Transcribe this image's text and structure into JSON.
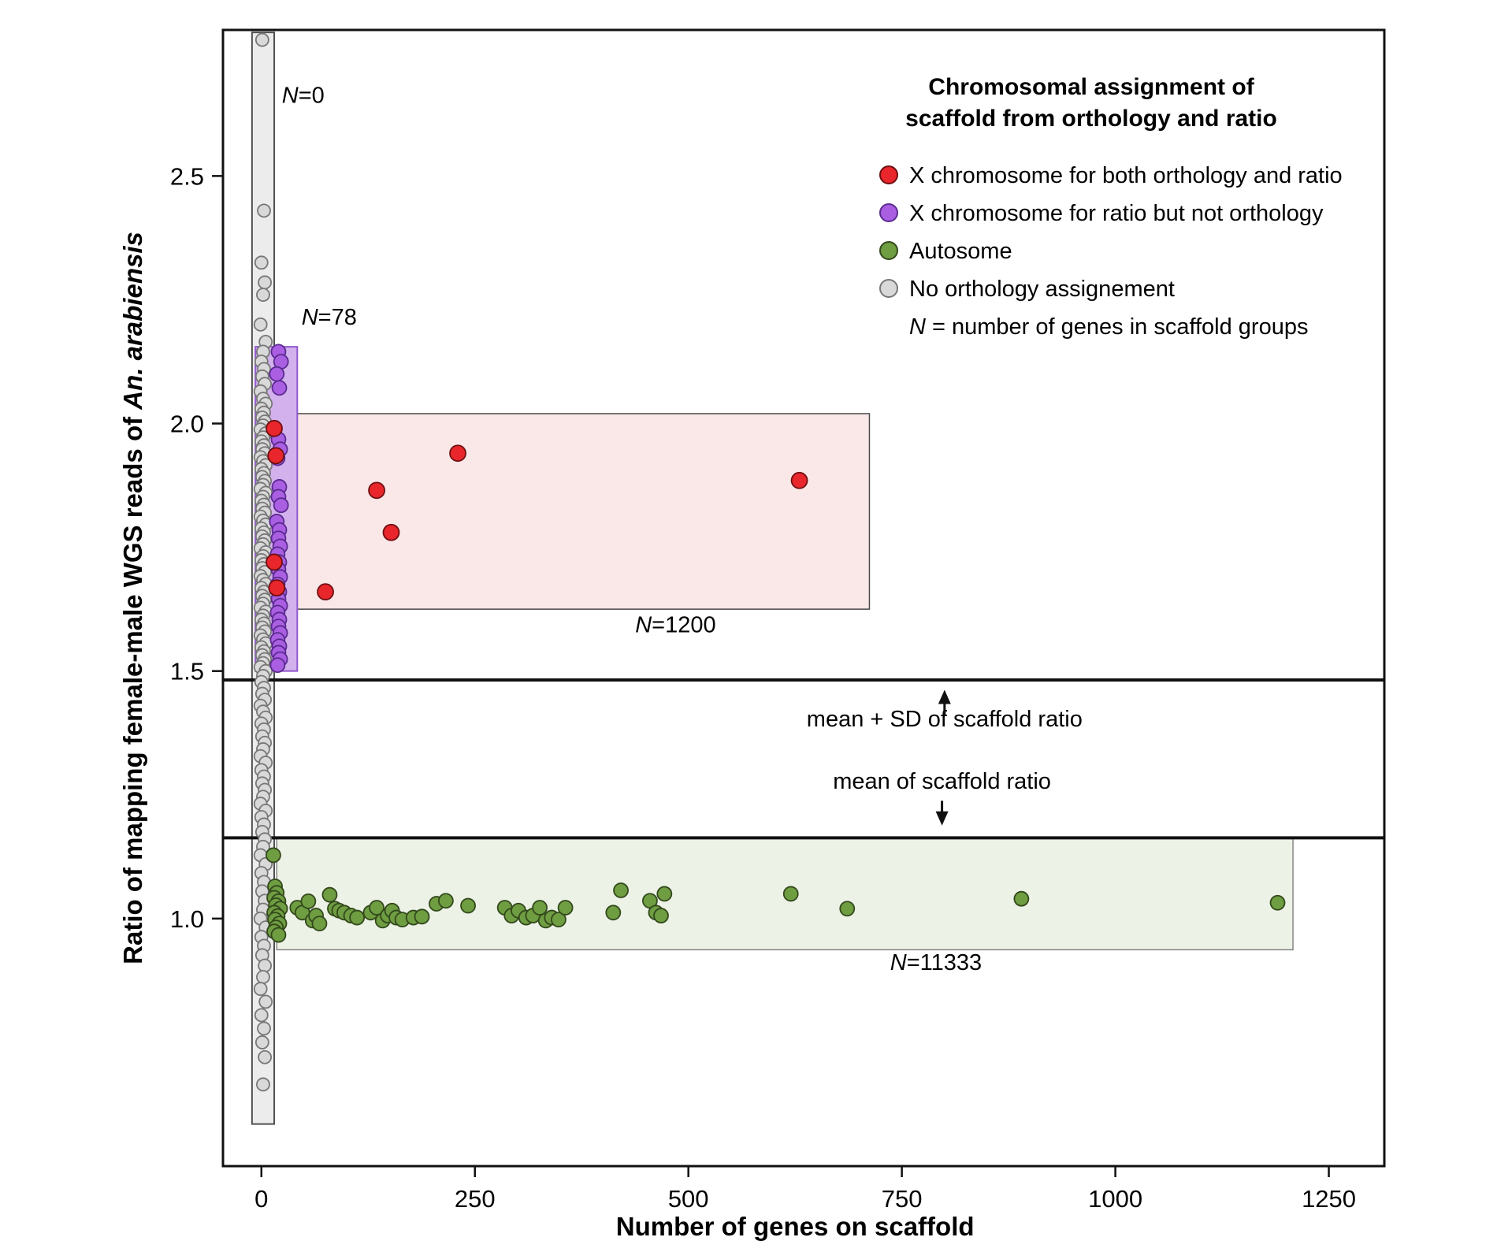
{
  "chart_data": {
    "type": "scatter",
    "xlabel": "Number of genes on scaffold",
    "ylabel": {
      "text": "Ratio of mapping female-male WGS reads of ",
      "italic": "An. arabiensis"
    },
    "xlim": [
      -45,
      1315
    ],
    "ylim": [
      0.5,
      2.795
    ],
    "x_ticks": [
      [
        0,
        "0"
      ],
      [
        250,
        "250"
      ],
      [
        500,
        "500"
      ],
      [
        750,
        "750"
      ],
      [
        1000,
        "1000"
      ],
      [
        1250,
        "1250"
      ]
    ],
    "y_ticks": [
      [
        1.0,
        "1.0"
      ],
      [
        1.5,
        "1.5"
      ],
      [
        2.0,
        "2.0"
      ],
      [
        2.5,
        "2.5"
      ]
    ],
    "grid": false,
    "hlines": [
      {
        "name": "mean-plus-sd-line",
        "y": 1.482
      },
      {
        "name": "mean-line",
        "y": 1.163
      }
    ],
    "annotations": [
      {
        "text": "mean + SD of scaffold ratio",
        "x": 800,
        "y": 1.388,
        "dir": "up",
        "arrow_from": 1.412,
        "arrow_to": 1.462
      },
      {
        "text": "mean of scaffold ratio",
        "x": 797,
        "y": 1.262,
        "dir": "down",
        "arrow_from": 1.238,
        "arrow_to": 1.188
      }
    ],
    "bands": [
      {
        "name": "no-orthology",
        "x0": -11,
        "x1": 15,
        "y0": 0.585,
        "y1": 2.79,
        "fill": "#ececec",
        "stroke": "#4f4f4f",
        "sw": 2,
        "label": "N=0",
        "label_x": 24,
        "label_y": 2.648,
        "label_anchor": "start"
      },
      {
        "name": "x-both",
        "x0": 22,
        "x1": 712,
        "y0": 1.625,
        "y1": 2.02,
        "fill": "#fae7e7",
        "stroke": "#4a4a4a",
        "sw": 1.5,
        "label": "N=1200",
        "label_x": 485,
        "label_y": 1.578,
        "label_anchor": "middle"
      },
      {
        "name": "autosome",
        "x0": 18,
        "x1": 1208,
        "y0": 0.937,
        "y1": 1.163,
        "fill": "#edf2e6",
        "stroke": "#7d7d7d",
        "sw": 1.4,
        "label": "N=11333",
        "label_x": 790,
        "label_y": 0.896,
        "label_anchor": "middle"
      },
      {
        "name": "x-ratio-not-orthology",
        "x0": -7,
        "x1": 42,
        "y0": 1.5,
        "y1": 2.155,
        "fill": "#d3b1ec",
        "stroke": "#9259cf",
        "sw": 2,
        "label": "N=78",
        "label_x": 47,
        "label_y": 2.2,
        "label_anchor": "start"
      }
    ],
    "series": [
      {
        "id": "no-orthology",
        "name": "No orthology assignement",
        "color": "#d9d9d9",
        "stroke": "#777777",
        "r": 8,
        "points": [
          [
            1,
            2.775
          ],
          [
            3,
            2.43
          ],
          [
            0,
            2.325
          ],
          [
            4,
            2.285
          ],
          [
            2,
            2.26
          ],
          [
            -1,
            2.2
          ],
          [
            5,
            2.165
          ],
          [
            2,
            2.145
          ],
          [
            0,
            2.125
          ],
          [
            3,
            2.11
          ],
          [
            1,
            2.095
          ],
          [
            4,
            2.08
          ],
          [
            -1,
            2.065
          ],
          [
            2,
            2.05
          ],
          [
            5,
            2.04
          ],
          [
            0,
            2.03
          ],
          [
            3,
            2.022
          ],
          [
            1,
            2.012
          ],
          [
            4,
            2.004
          ],
          [
            2,
            1.996
          ],
          [
            -1,
            1.988
          ],
          [
            5,
            1.98
          ],
          [
            2,
            1.972
          ],
          [
            0,
            1.964
          ],
          [
            3,
            1.956
          ],
          [
            1,
            1.948
          ],
          [
            4,
            1.94
          ],
          [
            -1,
            1.932
          ],
          [
            2,
            1.924
          ],
          [
            5,
            1.916
          ],
          [
            0,
            1.908
          ],
          [
            3,
            1.9
          ],
          [
            1,
            1.892
          ],
          [
            4,
            1.884
          ],
          [
            2,
            1.876
          ],
          [
            -1,
            1.868
          ],
          [
            5,
            1.86
          ],
          [
            2,
            1.852
          ],
          [
            0,
            1.844
          ],
          [
            3,
            1.836
          ],
          [
            1,
            1.828
          ],
          [
            4,
            1.82
          ],
          [
            -1,
            1.812
          ],
          [
            2,
            1.804
          ],
          [
            5,
            1.796
          ],
          [
            0,
            1.788
          ],
          [
            3,
            1.78
          ],
          [
            1,
            1.772
          ],
          [
            4,
            1.764
          ],
          [
            2,
            1.756
          ],
          [
            -1,
            1.748
          ],
          [
            5,
            1.74
          ],
          [
            2,
            1.732
          ],
          [
            0,
            1.724
          ],
          [
            3,
            1.716
          ],
          [
            1,
            1.708
          ],
          [
            4,
            1.7
          ],
          [
            -1,
            1.692
          ],
          [
            2,
            1.684
          ],
          [
            5,
            1.676
          ],
          [
            0,
            1.668
          ],
          [
            3,
            1.66
          ],
          [
            1,
            1.652
          ],
          [
            4,
            1.644
          ],
          [
            2,
            1.636
          ],
          [
            -1,
            1.628
          ],
          [
            5,
            1.62
          ],
          [
            2,
            1.612
          ],
          [
            0,
            1.604
          ],
          [
            3,
            1.596
          ],
          [
            1,
            1.588
          ],
          [
            4,
            1.58
          ],
          [
            -1,
            1.572
          ],
          [
            2,
            1.564
          ],
          [
            5,
            1.556
          ],
          [
            0,
            1.548
          ],
          [
            3,
            1.54
          ],
          [
            1,
            1.532
          ],
          [
            4,
            1.524
          ],
          [
            2,
            1.516
          ],
          [
            -1,
            1.508
          ],
          [
            5,
            1.5
          ],
          [
            2,
            1.49
          ],
          [
            0,
            1.478
          ],
          [
            3,
            1.466
          ],
          [
            1,
            1.454
          ],
          [
            4,
            1.442
          ],
          [
            -1,
            1.43
          ],
          [
            2,
            1.418
          ],
          [
            5,
            1.406
          ],
          [
            0,
            1.394
          ],
          [
            3,
            1.382
          ],
          [
            1,
            1.368
          ],
          [
            4,
            1.355
          ],
          [
            2,
            1.342
          ],
          [
            -1,
            1.328
          ],
          [
            5,
            1.315
          ],
          [
            0,
            1.3
          ],
          [
            3,
            1.287
          ],
          [
            1,
            1.273
          ],
          [
            4,
            1.26
          ],
          [
            2,
            1.246
          ],
          [
            -1,
            1.232
          ],
          [
            5,
            1.218
          ],
          [
            0,
            1.205
          ],
          [
            3,
            1.19
          ],
          [
            1,
            1.175
          ],
          [
            4,
            1.16
          ],
          [
            2,
            1.145
          ],
          [
            -1,
            1.128
          ],
          [
            5,
            1.11
          ],
          [
            0,
            1.092
          ],
          [
            3,
            1.074
          ],
          [
            1,
            1.055
          ],
          [
            4,
            1.036
          ],
          [
            2,
            1.018
          ],
          [
            -1,
            1.0
          ],
          [
            5,
            0.982
          ],
          [
            0,
            0.963
          ],
          [
            3,
            0.945
          ],
          [
            1,
            0.926
          ],
          [
            4,
            0.905
          ],
          [
            2,
            0.882
          ],
          [
            -1,
            0.858
          ],
          [
            5,
            0.832
          ],
          [
            0,
            0.805
          ],
          [
            3,
            0.778
          ],
          [
            1,
            0.75
          ],
          [
            4,
            0.72
          ],
          [
            2,
            0.665
          ]
        ]
      },
      {
        "id": "x-ratio",
        "name": "X chromosome for ratio but not orthology",
        "color": "#aa5fe3",
        "stroke": "#5a2b8f",
        "r": 9,
        "points": [
          [
            20,
            2.145
          ],
          [
            23,
            2.125
          ],
          [
            18,
            2.1
          ],
          [
            21,
            2.072
          ],
          [
            20,
            1.968
          ],
          [
            22,
            1.948
          ],
          [
            19,
            1.93
          ],
          [
            21,
            1.872
          ],
          [
            20,
            1.852
          ],
          [
            23,
            1.835
          ],
          [
            18,
            1.802
          ],
          [
            21,
            1.785
          ],
          [
            20,
            1.768
          ],
          [
            22,
            1.752
          ],
          [
            19,
            1.736
          ],
          [
            21,
            1.72
          ],
          [
            20,
            1.705
          ],
          [
            22,
            1.69
          ],
          [
            19,
            1.675
          ],
          [
            21,
            1.66
          ],
          [
            20,
            1.646
          ],
          [
            22,
            1.632
          ],
          [
            19,
            1.618
          ],
          [
            21,
            1.604
          ],
          [
            20,
            1.59
          ],
          [
            22,
            1.577
          ],
          [
            19,
            1.563
          ],
          [
            21,
            1.55
          ],
          [
            20,
            1.537
          ],
          [
            22,
            1.524
          ],
          [
            19,
            1.512
          ]
        ]
      },
      {
        "id": "x-both",
        "name": "X chromosome for both orthology and ratio",
        "color": "#e8262b",
        "stroke": "#6e0f12",
        "r": 10,
        "points": [
          [
            15,
            1.99
          ],
          [
            17,
            1.935
          ],
          [
            15,
            1.72
          ],
          [
            18,
            1.668
          ],
          [
            75,
            1.66
          ],
          [
            135,
            1.865
          ],
          [
            152,
            1.78
          ],
          [
            230,
            1.94
          ],
          [
            630,
            1.885
          ]
        ]
      },
      {
        "id": "autosome",
        "name": "Autosome",
        "color": "#6f9d41",
        "stroke": "#33491d",
        "r": 9,
        "points": [
          [
            14,
            1.128
          ],
          [
            16,
            1.065
          ],
          [
            18,
            1.052
          ],
          [
            15,
            1.042
          ],
          [
            20,
            1.035
          ],
          [
            17,
            1.027
          ],
          [
            22,
            1.02
          ],
          [
            15,
            1.012
          ],
          [
            19,
            1.005
          ],
          [
            16,
            0.998
          ],
          [
            21,
            0.99
          ],
          [
            17,
            0.982
          ],
          [
            15,
            0.974
          ],
          [
            20,
            0.967
          ],
          [
            42,
            1.022
          ],
          [
            48,
            1.012
          ],
          [
            55,
            1.035
          ],
          [
            60,
            0.996
          ],
          [
            64,
            1.006
          ],
          [
            68,
            0.99
          ],
          [
            80,
            1.048
          ],
          [
            86,
            1.02
          ],
          [
            91,
            1.016
          ],
          [
            97,
            1.012
          ],
          [
            105,
            1.006
          ],
          [
            112,
            1.002
          ],
          [
            128,
            1.012
          ],
          [
            135,
            1.022
          ],
          [
            142,
            0.996
          ],
          [
            148,
            1.006
          ],
          [
            153,
            1.016
          ],
          [
            158,
            1.002
          ],
          [
            165,
            0.998
          ],
          [
            178,
            1.002
          ],
          [
            188,
            1.004
          ],
          [
            205,
            1.03
          ],
          [
            216,
            1.036
          ],
          [
            242,
            1.026
          ],
          [
            285,
            1.022
          ],
          [
            293,
            1.006
          ],
          [
            301,
            1.016
          ],
          [
            310,
            1.002
          ],
          [
            318,
            1.006
          ],
          [
            326,
            1.022
          ],
          [
            333,
            0.996
          ],
          [
            340,
            1.002
          ],
          [
            348,
            0.998
          ],
          [
            356,
            1.022
          ],
          [
            412,
            1.012
          ],
          [
            421,
            1.057
          ],
          [
            455,
            1.036
          ],
          [
            462,
            1.012
          ],
          [
            468,
            1.006
          ],
          [
            472,
            1.05
          ],
          [
            620,
            1.05
          ],
          [
            686,
            1.02
          ],
          [
            890,
            1.04
          ],
          [
            1190,
            1.032
          ]
        ]
      }
    ],
    "legend": {
      "title": [
        "Chromosomal assignment of",
        "scaffold from orthology and ratio"
      ],
      "items": [
        {
          "label": "X chromosome for both orthology and ratio",
          "color": "#e8262b",
          "stroke": "#6e0f12"
        },
        {
          "label": "X chromosome for ratio but not orthology",
          "color": "#aa5fe3",
          "stroke": "#5a2b8f"
        },
        {
          "label": "Autosome",
          "color": "#6f9d41",
          "stroke": "#33491d"
        },
        {
          "label": "No orthology assignement",
          "color": "#d9d9d9",
          "stroke": "#777777"
        }
      ],
      "note": "N = number of genes in scaffold groups"
    }
  }
}
